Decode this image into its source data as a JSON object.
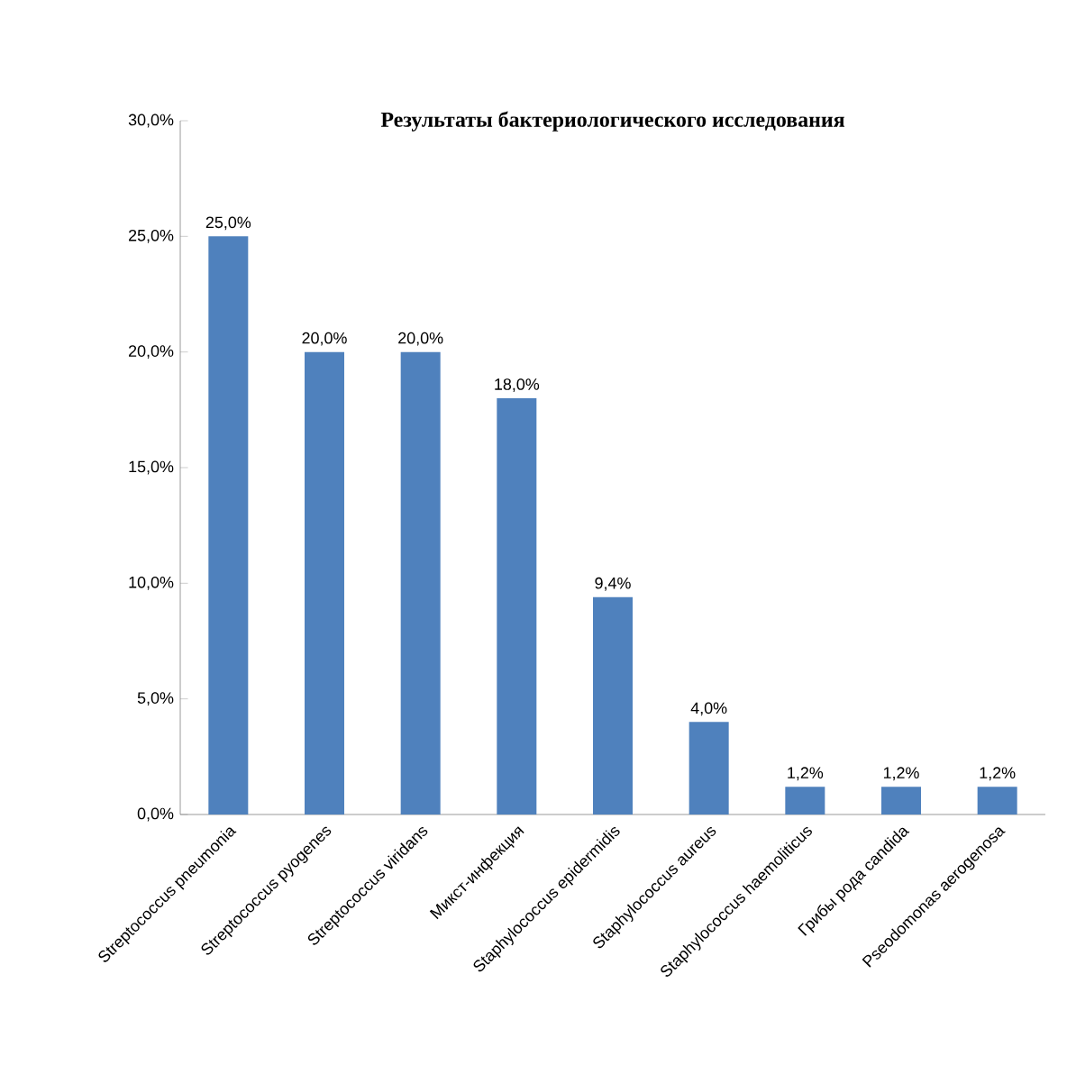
{
  "chart_data": {
    "type": "bar",
    "title": "Результаты бактериологического исследования",
    "categories": [
      "Streptococcus pneumonia",
      "Streptococcus pyogenes",
      "Streptococcus viridans",
      "Микст-инфекция",
      "Staphylococcus epidermidis",
      "Staphylococcus aureus",
      "Staphylococcus  haemoliticus",
      "Грибы рода candida",
      "Pseodomonas aerogenosa"
    ],
    "values": [
      25.0,
      20.0,
      20.0,
      18.0,
      9.4,
      4.0,
      1.2,
      1.2,
      1.2
    ],
    "value_labels": [
      "25,0%",
      "20,0%",
      "20,0%",
      "18,0%",
      "9,4%",
      "4,0%",
      "1,2%",
      "1,2%",
      "1,2%"
    ],
    "color": "#4f81bd",
    "ylim": [
      0,
      30
    ],
    "yticks": [
      {
        "value": 0,
        "label": "0,0%"
      },
      {
        "value": 5,
        "label": "5,0%"
      },
      {
        "value": 10,
        "label": "10,0%"
      },
      {
        "value": 15,
        "label": "15,0%"
      },
      {
        "value": 20,
        "label": "20,0%"
      },
      {
        "value": 25,
        "label": "25,0%"
      },
      {
        "value": 30,
        "label": "30,0%"
      }
    ]
  }
}
